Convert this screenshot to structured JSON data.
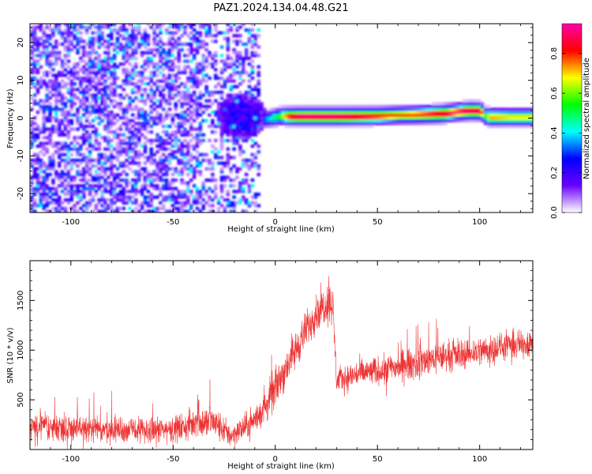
{
  "title": "PAZ1.2024.134.04.48.G21",
  "chart_data": [
    {
      "type": "heatmap",
      "title": "PAZ1.2024.134.04.48.G21",
      "xlabel": "Height of straight line (km)",
      "ylabel": "Frequency (Hz)",
      "xlim": [
        -120,
        126
      ],
      "ylim": [
        -25,
        25
      ],
      "x_ticks": [
        -100,
        -50,
        0,
        50,
        100
      ],
      "y_ticks": [
        -20,
        -10,
        0,
        10,
        20
      ],
      "grid": false,
      "colorbar": {
        "label": "Normalized spectral amplitude",
        "range": [
          0.0,
          0.95
        ],
        "ticks": [
          0.0,
          0.2,
          0.4,
          0.6,
          0.8
        ],
        "colormap": [
          "#ffffff",
          "#6a00ff",
          "#0000ff",
          "#00ffff",
          "#00ff00",
          "#ffff00",
          "#ff0000",
          "#ff00aa"
        ]
      },
      "noise_region": {
        "x": [
          -120,
          -8
        ],
        "y": [
          -25,
          25
        ],
        "amplitude": [
          0.05,
          0.35
        ]
      },
      "transition_blob": {
        "x": [
          -30,
          -5
        ],
        "y": [
          -6,
          6
        ],
        "amplitude": 0.3
      },
      "signal_band": {
        "x": [
          -7,
          2,
          5,
          10,
          30,
          50,
          60,
          70,
          80,
          88,
          95,
          100,
          102,
          105,
          115,
          126
        ],
        "y": [
          -0.8,
          0.2,
          0.2,
          0.2,
          0.2,
          0.3,
          0.5,
          0.6,
          0.8,
          1.3,
          1.6,
          1.5,
          0.2,
          0.0,
          0.0,
          0.0
        ],
        "peak_amplitude": [
          0.3,
          0.6,
          0.8,
          0.95,
          0.95,
          0.85,
          0.8,
          0.85,
          0.9,
          0.9,
          0.95,
          0.9,
          0.6,
          0.75,
          0.7,
          0.7
        ]
      }
    },
    {
      "type": "line",
      "xlabel": "Height of straight line (km)",
      "ylabel": "SNR (10 * v/v)",
      "xlim": [
        -120,
        126
      ],
      "ylim": [
        0,
        1900
      ],
      "x_ticks": [
        -100,
        -50,
        0,
        50,
        100
      ],
      "y_ticks": [
        500,
        1000,
        1500
      ],
      "grid": false,
      "color": "#ee3333",
      "series": [
        {
          "x": [
            -120,
            -100,
            -80,
            -60,
            -45,
            -40,
            -38,
            -35,
            -32,
            -28,
            -22,
            -15,
            -10,
            -5,
            0,
            5,
            10,
            15,
            20,
            25,
            28,
            30,
            35,
            40,
            50,
            60,
            70,
            80,
            90,
            100,
            110,
            120,
            126
          ],
          "values": [
            240,
            220,
            200,
            190,
            220,
            260,
            360,
            250,
            300,
            240,
            140,
            220,
            300,
            420,
            620,
            820,
            1000,
            1200,
            1380,
            1470,
            1480,
            700,
            720,
            760,
            790,
            830,
            880,
            930,
            960,
            990,
            1030,
            1060,
            1080
          ],
          "noise_amplitude": [
            120,
            130,
            120,
            120,
            130,
            140,
            200,
            160,
            160,
            140,
            110,
            120,
            140,
            160,
            180,
            180,
            180,
            170,
            170,
            180,
            200,
            120,
            120,
            130,
            130,
            140,
            150,
            140,
            140,
            140,
            130,
            130,
            130
          ]
        }
      ]
    }
  ]
}
